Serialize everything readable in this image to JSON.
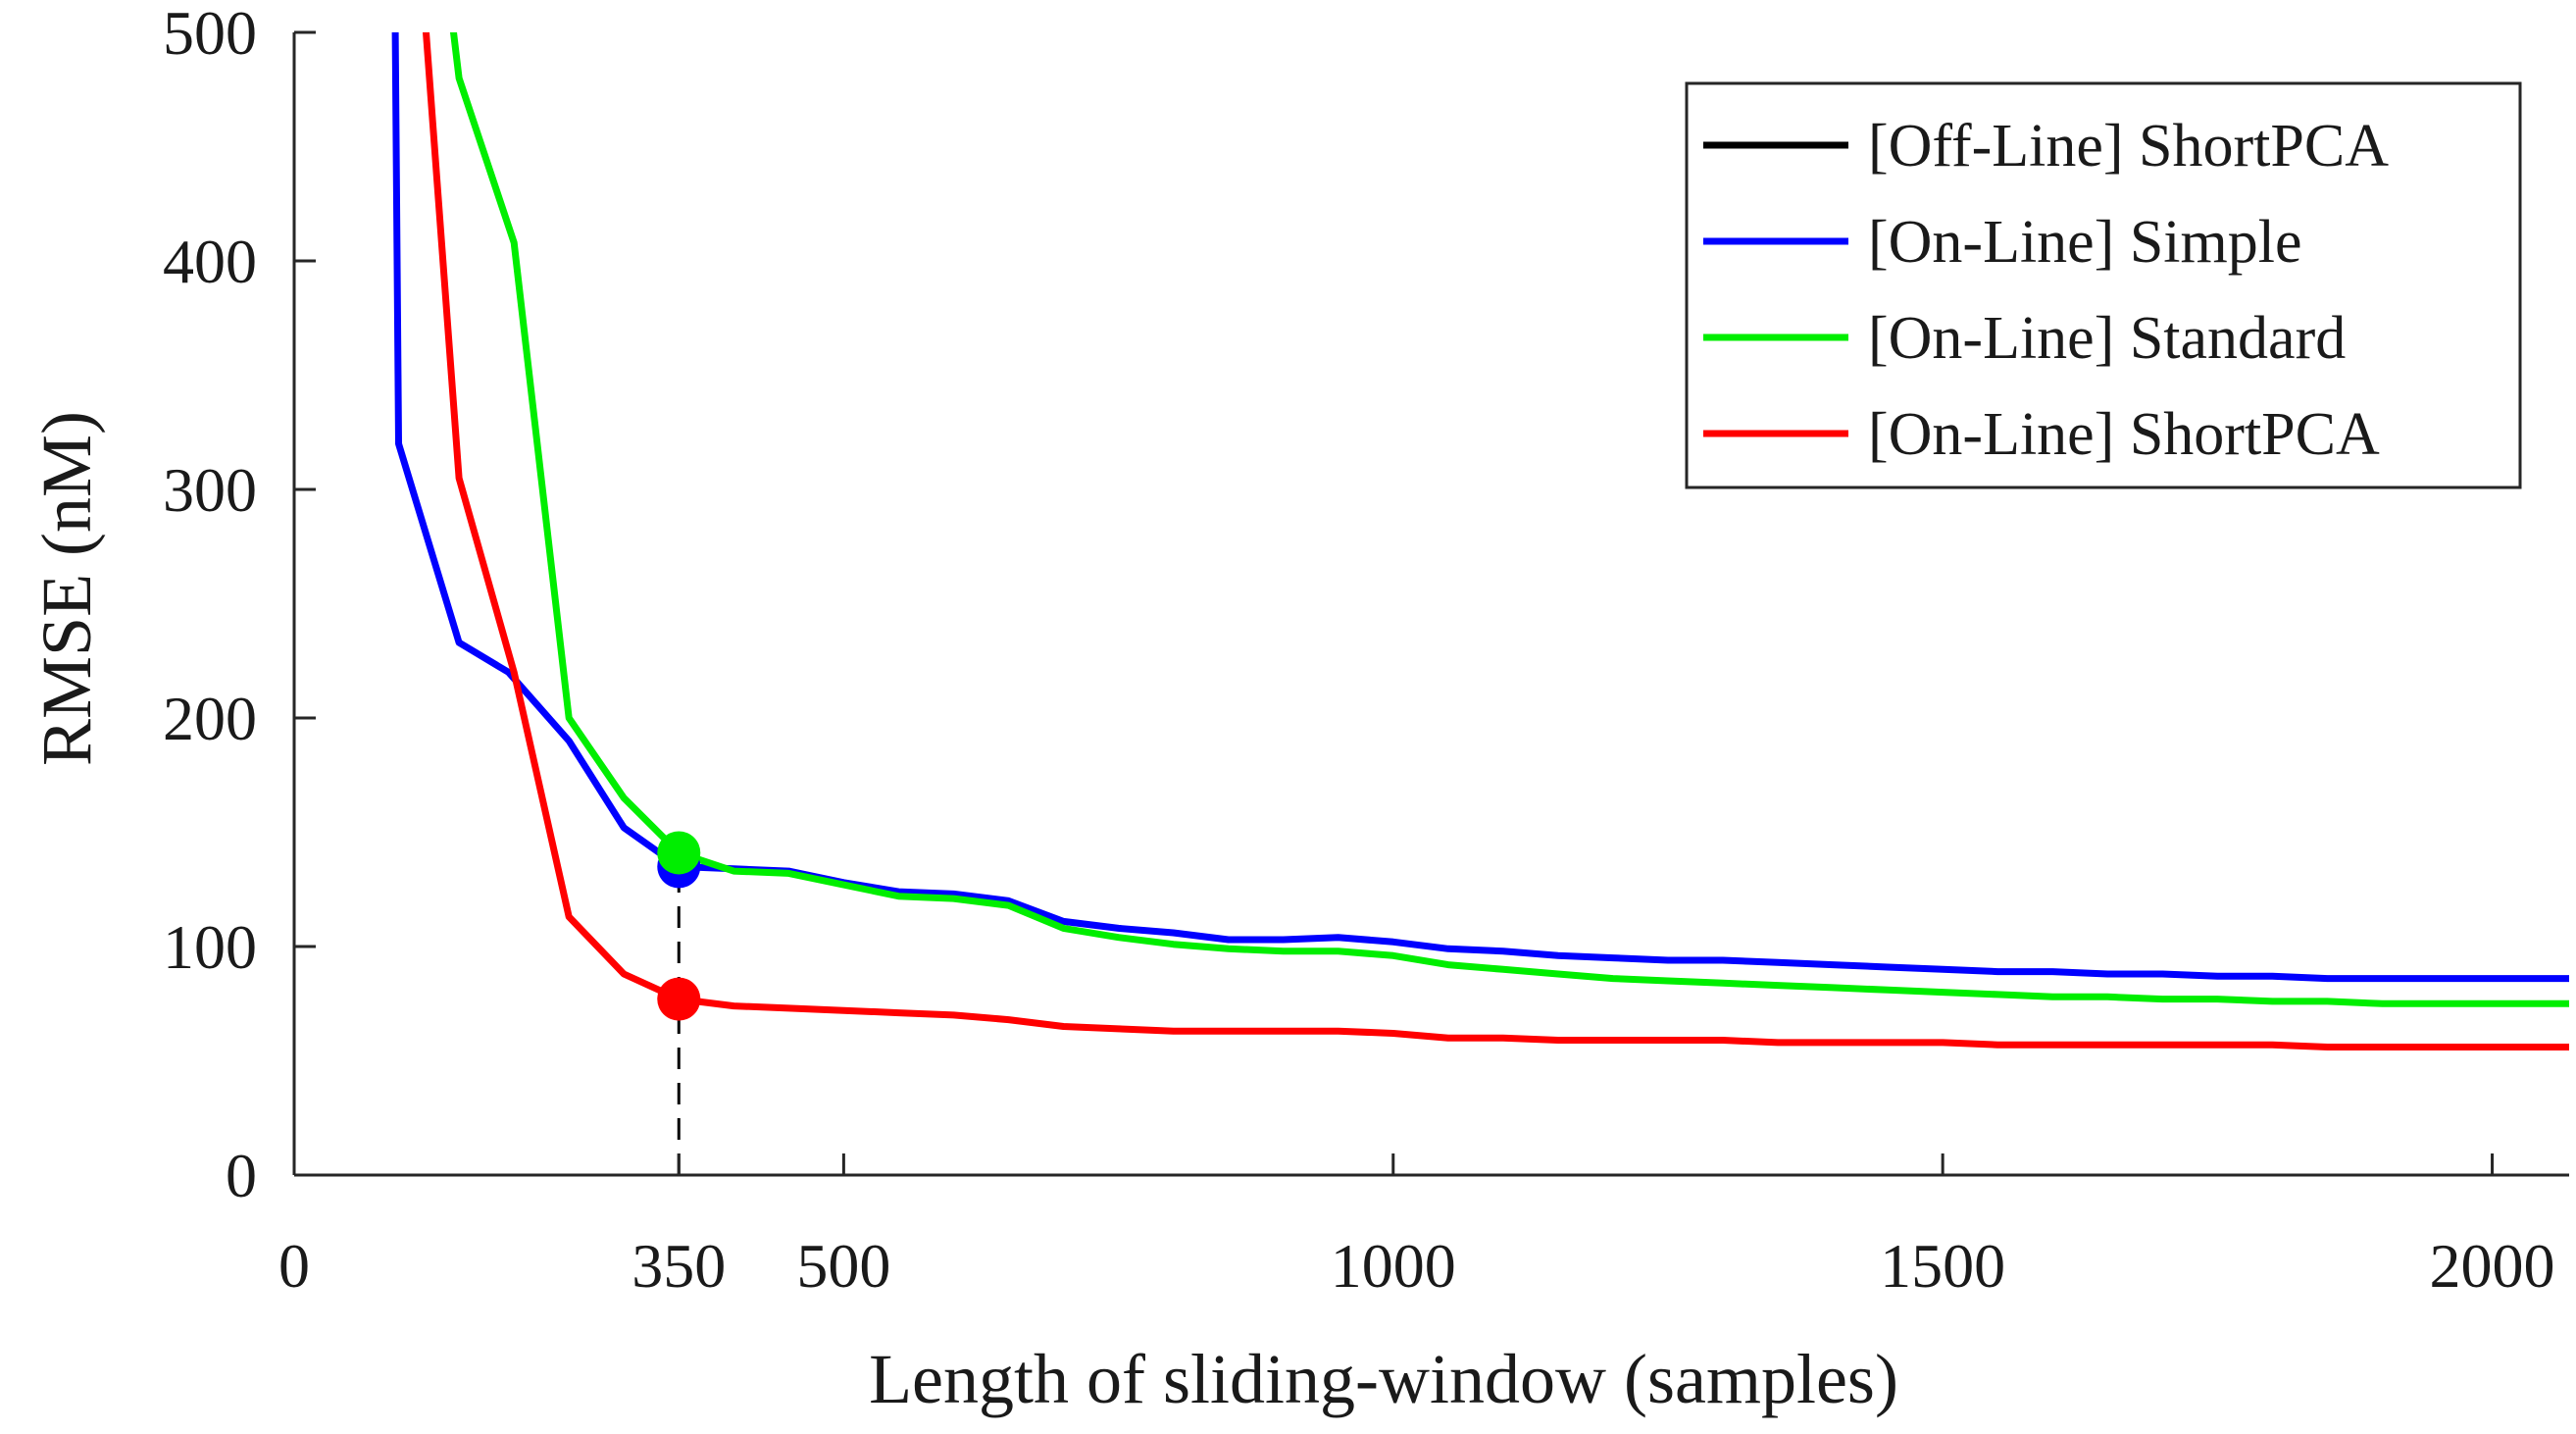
{
  "chart_data": {
    "type": "line",
    "title": "",
    "xlabel": "Length of sliding-window (samples)",
    "ylabel": "RMSE (nM)",
    "xlim": [
      0,
      2070
    ],
    "ylim": [
      0,
      500
    ],
    "xticks": [
      0,
      350,
      500,
      1000,
      1500,
      2000
    ],
    "xtick_labels": [
      "0",
      "350",
      "500",
      "1000",
      "1500",
      "2000"
    ],
    "yticks": [
      0,
      100,
      200,
      300,
      400,
      500
    ],
    "ytick_labels": [
      "0",
      "100",
      "200",
      "300",
      "400",
      "500"
    ],
    "grid": false,
    "legend_position": "top-right",
    "reference_line": {
      "x": 350,
      "y_from": 0,
      "y_to": 141,
      "style": "dashed",
      "color": "#000000"
    },
    "series": [
      {
        "name": "[Off-Line] ShortPCA",
        "color": "#000000",
        "points": []
      },
      {
        "name": "[On-Line] Simple",
        "color": "#0000ff",
        "points": [
          [
            92,
            500
          ],
          [
            95,
            320
          ],
          [
            150,
            233
          ],
          [
            195,
            220
          ],
          [
            250,
            190
          ],
          [
            300,
            152
          ],
          [
            350,
            135
          ],
          [
            400,
            134
          ],
          [
            450,
            133
          ],
          [
            500,
            128
          ],
          [
            550,
            124
          ],
          [
            600,
            123
          ],
          [
            650,
            120
          ],
          [
            700,
            111
          ],
          [
            750,
            108
          ],
          [
            800,
            106
          ],
          [
            850,
            103
          ],
          [
            900,
            103
          ],
          [
            950,
            104
          ],
          [
            1000,
            102
          ],
          [
            1050,
            99
          ],
          [
            1100,
            98
          ],
          [
            1150,
            96
          ],
          [
            1200,
            95
          ],
          [
            1250,
            94
          ],
          [
            1300,
            94
          ],
          [
            1350,
            93
          ],
          [
            1400,
            92
          ],
          [
            1450,
            91
          ],
          [
            1500,
            90
          ],
          [
            1550,
            89
          ],
          [
            1600,
            89
          ],
          [
            1650,
            88
          ],
          [
            1700,
            88
          ],
          [
            1750,
            87
          ],
          [
            1800,
            87
          ],
          [
            1850,
            86
          ],
          [
            1900,
            86
          ],
          [
            1950,
            86
          ],
          [
            2000,
            86
          ],
          [
            2070,
            86
          ]
        ]
      },
      {
        "name": "[On-Line] Standard",
        "color": "#00ee00",
        "points": [
          [
            145,
            500
          ],
          [
            150,
            480
          ],
          [
            200,
            408
          ],
          [
            250,
            200
          ],
          [
            300,
            165
          ],
          [
            350,
            141
          ],
          [
            400,
            133
          ],
          [
            450,
            132
          ],
          [
            500,
            127
          ],
          [
            550,
            122
          ],
          [
            600,
            121
          ],
          [
            650,
            118
          ],
          [
            700,
            108
          ],
          [
            750,
            104
          ],
          [
            800,
            101
          ],
          [
            850,
            99
          ],
          [
            900,
            98
          ],
          [
            950,
            98
          ],
          [
            1000,
            96
          ],
          [
            1050,
            92
          ],
          [
            1100,
            90
          ],
          [
            1150,
            88
          ],
          [
            1200,
            86
          ],
          [
            1250,
            85
          ],
          [
            1300,
            84
          ],
          [
            1350,
            83
          ],
          [
            1400,
            82
          ],
          [
            1450,
            81
          ],
          [
            1500,
            80
          ],
          [
            1550,
            79
          ],
          [
            1600,
            78
          ],
          [
            1650,
            78
          ],
          [
            1700,
            77
          ],
          [
            1750,
            77
          ],
          [
            1800,
            76
          ],
          [
            1850,
            76
          ],
          [
            1900,
            75
          ],
          [
            1950,
            75
          ],
          [
            2000,
            75
          ],
          [
            2070,
            75
          ]
        ]
      },
      {
        "name": "[On-Line] ShortPCA",
        "color": "#ff0000",
        "points": [
          [
            120,
            500
          ],
          [
            150,
            305
          ],
          [
            200,
            220
          ],
          [
            250,
            113
          ],
          [
            300,
            88
          ],
          [
            350,
            77
          ],
          [
            400,
            74
          ],
          [
            450,
            73
          ],
          [
            500,
            72
          ],
          [
            550,
            71
          ],
          [
            600,
            70
          ],
          [
            650,
            68
          ],
          [
            700,
            65
          ],
          [
            750,
            64
          ],
          [
            800,
            63
          ],
          [
            850,
            63
          ],
          [
            900,
            63
          ],
          [
            950,
            63
          ],
          [
            1000,
            62
          ],
          [
            1050,
            60
          ],
          [
            1100,
            60
          ],
          [
            1150,
            59
          ],
          [
            1200,
            59
          ],
          [
            1250,
            59
          ],
          [
            1300,
            59
          ],
          [
            1350,
            58
          ],
          [
            1400,
            58
          ],
          [
            1450,
            58
          ],
          [
            1500,
            58
          ],
          [
            1550,
            57
          ],
          [
            1600,
            57
          ],
          [
            1650,
            57
          ],
          [
            1700,
            57
          ],
          [
            1750,
            57
          ],
          [
            1800,
            57
          ],
          [
            1850,
            56
          ],
          [
            1900,
            56
          ],
          [
            1950,
            56
          ],
          [
            2000,
            56
          ],
          [
            2070,
            56
          ]
        ]
      }
    ],
    "markers": [
      {
        "series": "[On-Line] Simple",
        "x": 350,
        "y": 135,
        "color": "#0000ff"
      },
      {
        "series": "[On-Line] Standard",
        "x": 350,
        "y": 141,
        "color": "#00ee00"
      },
      {
        "series": "[On-Line] ShortPCA",
        "x": 350,
        "y": 77,
        "color": "#ff0000"
      }
    ]
  }
}
